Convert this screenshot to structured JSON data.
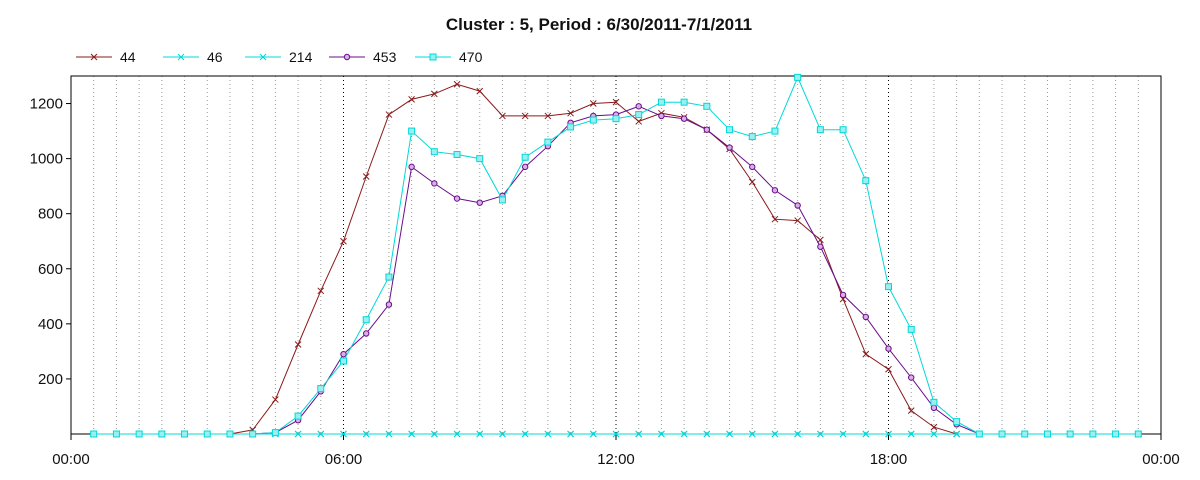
{
  "chart_data": {
    "type": "line",
    "title": "Cluster : 5, Period : 6/30/2011-7/1/2011",
    "xlabel": "",
    "ylabel": "",
    "x_range_hours": [
      0,
      24
    ],
    "x_tick_labels": [
      "00:00",
      "06:00",
      "12:00",
      "18:00",
      "00:00"
    ],
    "y_range": [
      0,
      1300
    ],
    "y_ticks": [
      200,
      400,
      600,
      800,
      1000,
      1200
    ],
    "grid": "vertical dotted lines every 30 minutes; horizontal lines none",
    "legend_position": "top-left",
    "x_hours": [
      0.5,
      1.0,
      1.5,
      2.0,
      2.5,
      3.0,
      3.5,
      4.0,
      4.5,
      5.0,
      5.5,
      6.0,
      6.5,
      7.0,
      7.5,
      8.0,
      8.5,
      9.0,
      9.5,
      10.0,
      10.5,
      11.0,
      11.5,
      12.0,
      12.5,
      13.0,
      13.5,
      14.0,
      14.5,
      15.0,
      15.5,
      16.0,
      16.5,
      17.0,
      17.5,
      18.0,
      18.5,
      19.0,
      19.5,
      20.0,
      20.5,
      21.0,
      21.5,
      22.0,
      22.5,
      23.0,
      23.5
    ],
    "series": [
      {
        "name": "44",
        "color": "#8b1a1a",
        "marker": "x",
        "values": [
          0,
          0,
          0,
          0,
          0,
          0,
          0,
          15,
          125,
          325,
          520,
          700,
          935,
          1160,
          1215,
          1235,
          1270,
          1245,
          1155,
          1155,
          1155,
          1165,
          1200,
          1205,
          1135,
          1165,
          1150,
          1105,
          1035,
          915,
          780,
          775,
          705,
          490,
          290,
          235,
          85,
          25,
          0,
          0,
          0,
          0,
          0,
          0,
          0,
          0,
          0
        ]
      },
      {
        "name": "46",
        "color": "#00d8d8",
        "marker": "asterisk",
        "values": [
          0,
          0,
          0,
          0,
          0,
          0,
          0,
          0,
          0,
          0,
          0,
          0,
          0,
          0,
          0,
          0,
          0,
          0,
          0,
          0,
          0,
          0,
          0,
          0,
          0,
          0,
          0,
          0,
          0,
          0,
          0,
          0,
          0,
          0,
          0,
          0,
          0,
          0,
          0,
          0,
          0,
          0,
          0,
          0,
          0,
          0,
          0
        ]
      },
      {
        "name": "214",
        "color": "#00d8d8",
        "marker": "x",
        "values": [
          0,
          0,
          0,
          0,
          0,
          0,
          0,
          0,
          0,
          0,
          0,
          0,
          0,
          0,
          0,
          0,
          0,
          0,
          0,
          0,
          0,
          0,
          0,
          0,
          0,
          0,
          0,
          0,
          0,
          0,
          0,
          0,
          0,
          0,
          0,
          0,
          0,
          0,
          0,
          0,
          0,
          0,
          0,
          0,
          0,
          0,
          0
        ]
      },
      {
        "name": "453",
        "color": "#6a0d8a",
        "marker": "circle",
        "values": [
          0,
          0,
          0,
          0,
          0,
          0,
          0,
          0,
          5,
          50,
          155,
          290,
          365,
          470,
          970,
          910,
          855,
          840,
          865,
          970,
          1045,
          1130,
          1155,
          1160,
          1190,
          1155,
          1145,
          1105,
          1040,
          970,
          885,
          830,
          680,
          505,
          425,
          310,
          205,
          95,
          35,
          0,
          0,
          0,
          0,
          0,
          0,
          0,
          0
        ]
      },
      {
        "name": "470",
        "color": "#00d8d8",
        "marker": "square",
        "values": [
          0,
          0,
          0,
          0,
          0,
          0,
          0,
          0,
          5,
          65,
          165,
          265,
          415,
          570,
          1100,
          1025,
          1015,
          1000,
          850,
          1005,
          1060,
          1115,
          1140,
          1145,
          1160,
          1205,
          1205,
          1190,
          1105,
          1080,
          1100,
          1295,
          1105,
          1105,
          920,
          535,
          380,
          115,
          45,
          0,
          0,
          0,
          0,
          0,
          0,
          0,
          0
        ]
      }
    ]
  }
}
